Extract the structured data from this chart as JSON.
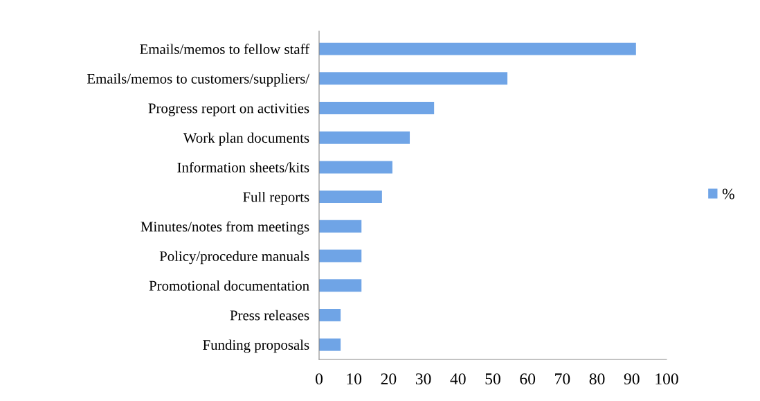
{
  "chart_data": {
    "type": "bar",
    "orientation": "horizontal",
    "categories": [
      "Emails/memos to fellow staff",
      "Emails/memos to customers/suppliers/",
      "Progress report on activities",
      "Work plan documents",
      "Information sheets/kits",
      "Full reports",
      "Minutes/notes from meetings",
      "Policy/procedure manuals",
      "Promotional documentation",
      "Press releases",
      "Funding proposals"
    ],
    "series": [
      {
        "name": "%",
        "color": "#6fa4e6",
        "values": [
          91.2,
          54.2,
          33.1,
          26.1,
          21.1,
          18.1,
          12.2,
          12.2,
          12.2,
          6.2,
          6.2
        ]
      }
    ],
    "xlim": [
      0,
      100
    ],
    "xticks": [
      0,
      10,
      20,
      30,
      40,
      50,
      60,
      70,
      80,
      90,
      100
    ],
    "grid": false,
    "legend": "right"
  }
}
